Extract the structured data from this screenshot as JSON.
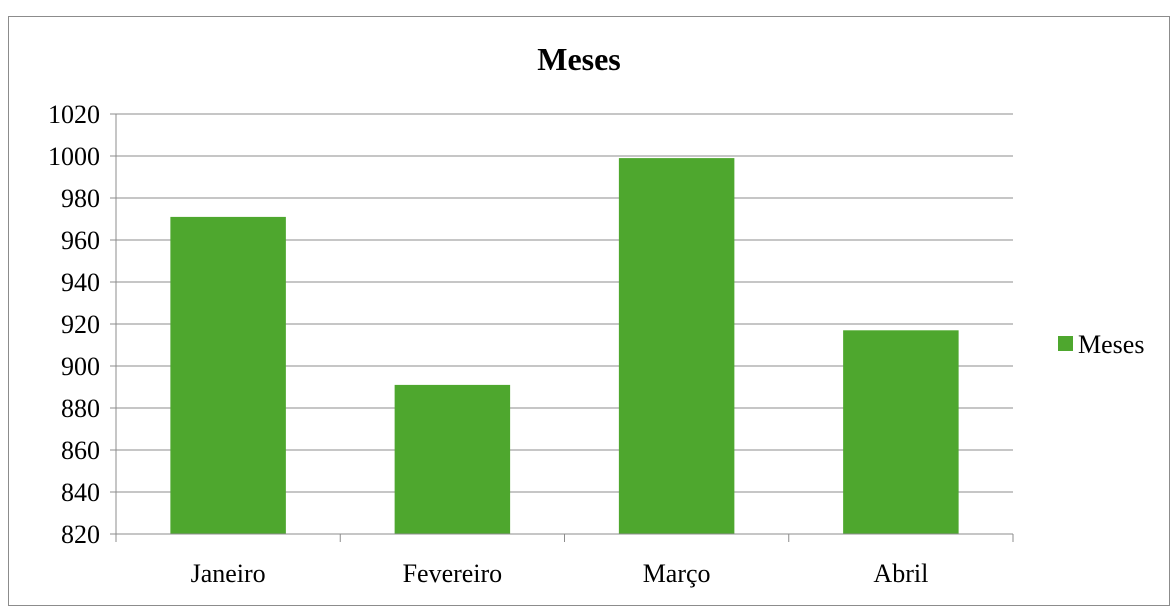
{
  "chart_data": {
    "type": "bar",
    "title": "Meses",
    "categories": [
      "Janeiro",
      "Fevereiro",
      "Março",
      "Abril"
    ],
    "series": [
      {
        "name": "Meses",
        "values": [
          971,
          891,
          999,
          917
        ]
      }
    ],
    "ylim": [
      820,
      1020
    ],
    "yticks": [
      820,
      840,
      860,
      880,
      900,
      920,
      940,
      960,
      980,
      1000,
      1020
    ],
    "xlabel": "",
    "ylabel": "",
    "grid": true,
    "legend": "right",
    "colors": {
      "bar": "#4ea72e",
      "grid": "#8c8c8c",
      "axis": "#8c8c8c"
    }
  }
}
